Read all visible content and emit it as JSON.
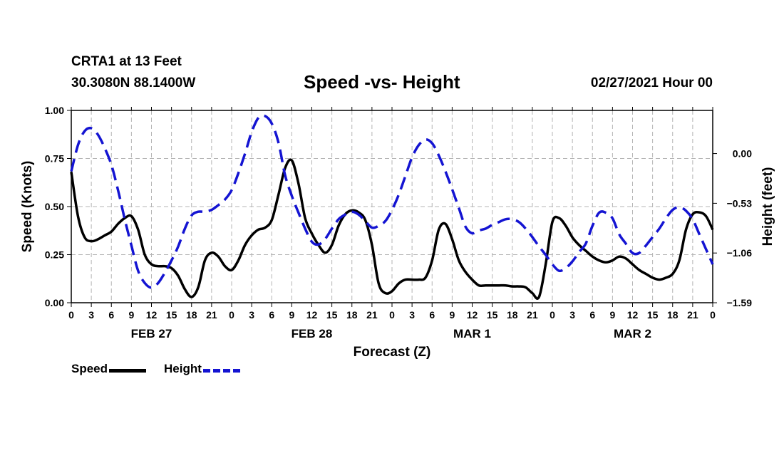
{
  "header": {
    "station": "CRTA1 at 13 Feet",
    "coords": "30.3080N 88.1400W",
    "title": "Speed -vs- Height",
    "runtime": "02/27/2021 Hour 00"
  },
  "colors": {
    "speed": "#000000",
    "height": "#1414d2",
    "grid": "#b4b4b4"
  },
  "legend": {
    "speed_label": "Speed",
    "height_label": "Height"
  },
  "chart_data": {
    "type": "line",
    "title": "Speed -vs- Height",
    "xlabel": "Forecast (Z)",
    "ylabel": "Speed (Knots)",
    "y2label": "Height (feet)",
    "xlim": [
      0,
      96
    ],
    "ylim": [
      0,
      1.0
    ],
    "y2lim": [
      -1.59,
      0.46
    ],
    "x_ticks": [
      0,
      3,
      6,
      9,
      12,
      15,
      18,
      21,
      24,
      27,
      30,
      33,
      36,
      39,
      42,
      45,
      48,
      51,
      54,
      57,
      60,
      63,
      66,
      69,
      72,
      75,
      78,
      81,
      84,
      87,
      90,
      93,
      96
    ],
    "x_tick_labels": [
      "0",
      "3",
      "6",
      "9",
      "12",
      "15",
      "18",
      "21",
      "0",
      "3",
      "6",
      "9",
      "12",
      "15",
      "18",
      "21",
      "0",
      "3",
      "6",
      "9",
      "12",
      "15",
      "18",
      "21",
      "0",
      "3",
      "6",
      "9",
      "12",
      "15",
      "18",
      "21",
      "0"
    ],
    "day_labels": [
      {
        "x": 12,
        "label": "FEB 27"
      },
      {
        "x": 36,
        "label": "FEB 28"
      },
      {
        "x": 60,
        "label": "MAR 1"
      },
      {
        "x": 84,
        "label": "MAR 2"
      }
    ],
    "y_ticks": [
      0,
      0.25,
      0.5,
      0.75,
      1.0
    ],
    "y_tick_labels": [
      "0.00",
      "0.25",
      "0.50",
      "0.75",
      "1.00"
    ],
    "y2_ticks": [
      0.0,
      -0.53,
      -1.06,
      -1.59
    ],
    "y2_tick_labels": [
      "0.00",
      "−0.53",
      "−1.06",
      "−1.59"
    ],
    "grid": true,
    "series": [
      {
        "name": "Speed",
        "axis": "left",
        "style": "solid",
        "x": [
          0,
          1,
          2,
          3,
          4,
          5,
          6,
          7,
          8,
          9,
          10,
          11,
          12,
          13,
          14,
          15,
          16,
          17,
          18,
          19,
          20,
          21,
          22,
          23,
          24,
          25,
          26,
          27,
          28,
          29,
          30,
          31,
          32,
          33,
          34,
          35,
          36,
          37,
          38,
          39,
          40,
          41,
          42,
          43,
          44,
          45,
          46,
          47,
          48,
          49,
          50,
          51,
          52,
          53,
          54,
          55,
          56,
          57,
          58,
          59,
          60,
          61,
          62,
          63,
          64,
          65,
          66,
          67,
          68,
          69,
          70,
          71,
          72,
          73,
          74,
          75,
          76,
          77,
          78,
          79,
          80,
          81,
          82,
          83,
          84,
          85,
          86,
          87,
          88,
          89,
          90,
          91,
          92,
          93,
          94,
          95,
          96
        ],
        "values": [
          0.68,
          0.45,
          0.34,
          0.32,
          0.33,
          0.35,
          0.37,
          0.41,
          0.44,
          0.45,
          0.38,
          0.25,
          0.2,
          0.19,
          0.19,
          0.18,
          0.14,
          0.07,
          0.03,
          0.08,
          0.22,
          0.26,
          0.24,
          0.19,
          0.17,
          0.22,
          0.3,
          0.35,
          0.38,
          0.39,
          0.43,
          0.56,
          0.7,
          0.74,
          0.62,
          0.44,
          0.36,
          0.3,
          0.26,
          0.3,
          0.4,
          0.46,
          0.48,
          0.47,
          0.43,
          0.3,
          0.1,
          0.05,
          0.06,
          0.1,
          0.12,
          0.12,
          0.12,
          0.13,
          0.22,
          0.38,
          0.41,
          0.33,
          0.22,
          0.16,
          0.12,
          0.09,
          0.09,
          0.09,
          0.09,
          0.09,
          0.085,
          0.085,
          0.08,
          0.05,
          0.03,
          0.2,
          0.42,
          0.44,
          0.4,
          0.34,
          0.3,
          0.27,
          0.24,
          0.22,
          0.21,
          0.22,
          0.24,
          0.23,
          0.2,
          0.17,
          0.15,
          0.13,
          0.12,
          0.13,
          0.15,
          0.22,
          0.38,
          0.46,
          0.47,
          0.45,
          0.38
        ]
      },
      {
        "name": "Height",
        "axis": "right",
        "style": "dashed",
        "x": [
          0,
          1,
          2,
          3,
          4,
          5,
          6,
          7,
          8,
          9,
          10,
          11,
          12,
          13,
          14,
          15,
          16,
          17,
          18,
          19,
          20,
          21,
          22,
          23,
          24,
          25,
          26,
          27,
          28,
          29,
          30,
          31,
          32,
          33,
          34,
          35,
          36,
          37,
          38,
          39,
          40,
          41,
          42,
          43,
          44,
          45,
          46,
          47,
          48,
          49,
          50,
          51,
          52,
          53,
          54,
          55,
          56,
          57,
          58,
          59,
          60,
          61,
          62,
          63,
          64,
          65,
          66,
          67,
          68,
          69,
          70,
          71,
          72,
          73,
          74,
          75,
          76,
          77,
          78,
          79,
          80,
          81,
          82,
          83,
          84,
          85,
          86,
          87,
          88,
          89,
          90,
          91,
          92,
          93,
          94,
          95,
          96
        ],
        "values": [
          -0.19,
          0.09,
          0.24,
          0.27,
          0.2,
          0.06,
          -0.12,
          -0.39,
          -0.7,
          -0.98,
          -1.25,
          -1.38,
          -1.43,
          -1.38,
          -1.27,
          -1.14,
          -0.99,
          -0.8,
          -0.66,
          -0.62,
          -0.62,
          -0.6,
          -0.55,
          -0.49,
          -0.39,
          -0.21,
          0.0,
          0.23,
          0.38,
          0.4,
          0.32,
          0.12,
          -0.23,
          -0.45,
          -0.63,
          -0.8,
          -0.94,
          -0.97,
          -0.91,
          -0.8,
          -0.7,
          -0.65,
          -0.62,
          -0.65,
          -0.72,
          -0.79,
          -0.77,
          -0.72,
          -0.6,
          -0.44,
          -0.24,
          -0.04,
          0.09,
          0.15,
          0.11,
          -0.02,
          -0.19,
          -0.38,
          -0.58,
          -0.78,
          -0.85,
          -0.82,
          -0.8,
          -0.76,
          -0.73,
          -0.7,
          -0.7,
          -0.73,
          -0.8,
          -0.89,
          -0.99,
          -1.08,
          -1.18,
          -1.25,
          -1.22,
          -1.15,
          -1.05,
          -0.96,
          -0.77,
          -0.63,
          -0.63,
          -0.69,
          -0.86,
          -0.96,
          -1.06,
          -1.06,
          -0.98,
          -0.89,
          -0.8,
          -0.69,
          -0.6,
          -0.57,
          -0.61,
          -0.7,
          -0.86,
          -1.02,
          -1.18
        ]
      }
    ]
  }
}
